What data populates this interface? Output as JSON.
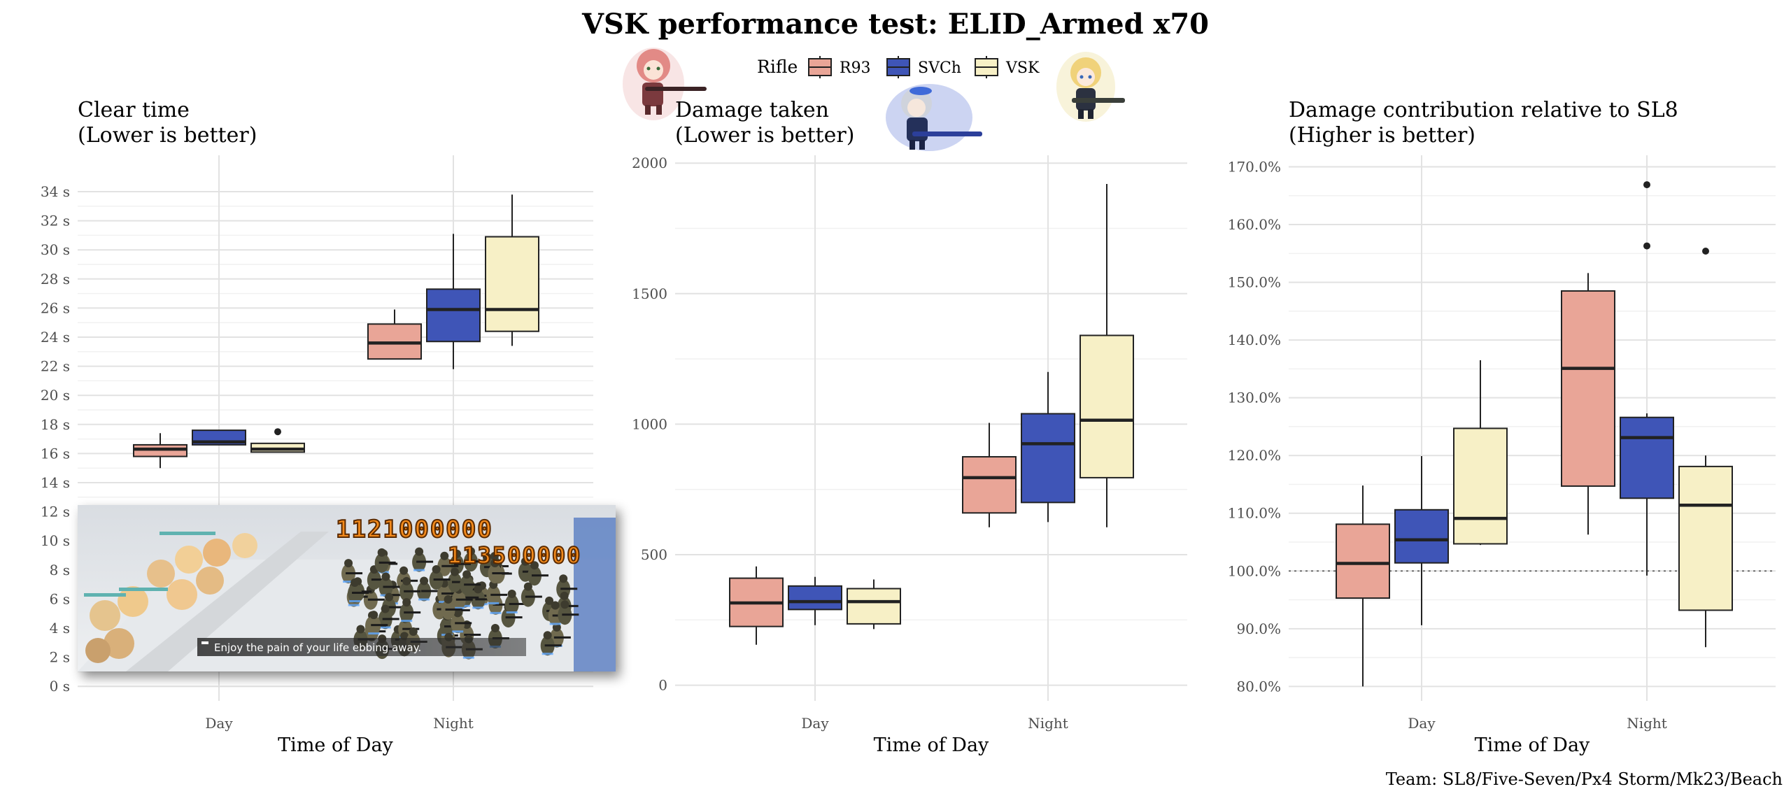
{
  "title": "VSK performance test: ELID_Armed x70",
  "caption": "Team: SL8/Five-Seven/Px4 Storm/Mk23/Beach",
  "legend": {
    "title": "Rifle",
    "entries": [
      {
        "name": "R93",
        "color": "#e9a597"
      },
      {
        "name": "SVCh",
        "color": "#3f55b7"
      },
      {
        "name": "VSK",
        "color": "#f7f0c6"
      }
    ]
  },
  "screenshot": {
    "subtitle": "Enjoy the pain of your life ebbing away.",
    "damage_text_1": "1121000000",
    "damage_text_2": "113500000"
  },
  "chart_data": [
    {
      "type": "box",
      "title_line1": "Clear time",
      "title_line2": "(Lower is better)",
      "xlabel": "Time of Day",
      "categories": [
        "Day",
        "Night"
      ],
      "ylim": [
        -1,
        36.5
      ],
      "yticks": [
        0,
        2,
        4,
        6,
        8,
        10,
        12,
        14,
        16,
        18,
        20,
        22,
        24,
        26,
        28,
        30,
        32,
        34
      ],
      "ytick_format": "s",
      "series": [
        {
          "name": "R93",
          "boxes": [
            {
              "min": 15.0,
              "q1": 15.8,
              "median": 16.3,
              "q3": 16.6,
              "max": 17.4,
              "outliers": []
            },
            {
              "min": 22.5,
              "q1": 22.5,
              "median": 23.6,
              "q3": 24.9,
              "max": 25.9,
              "outliers": []
            }
          ]
        },
        {
          "name": "SVCh",
          "boxes": [
            {
              "min": 16.6,
              "q1": 16.6,
              "median": 16.8,
              "q3": 17.6,
              "max": 17.6,
              "outliers": []
            },
            {
              "min": 21.8,
              "q1": 23.7,
              "median": 25.9,
              "q3": 27.3,
              "max": 31.1,
              "outliers": []
            }
          ]
        },
        {
          "name": "VSK",
          "boxes": [
            {
              "min": 16.1,
              "q1": 16.1,
              "median": 16.3,
              "q3": 16.7,
              "max": 16.7,
              "outliers": [
                17.5
              ]
            },
            {
              "min": 23.4,
              "q1": 24.4,
              "median": 25.9,
              "q3": 30.9,
              "max": 33.8,
              "outliers": []
            }
          ]
        }
      ]
    },
    {
      "type": "box",
      "title_line1": "Damage taken",
      "title_line2": "(Lower is better)",
      "xlabel": "Time of Day",
      "categories": [
        "Day",
        "Night"
      ],
      "ylim": [
        -60,
        2030
      ],
      "yticks": [
        0,
        500,
        1000,
        1500,
        2000
      ],
      "ytick_format": "plain",
      "series": [
        {
          "name": "R93",
          "boxes": [
            {
              "min": 155,
              "q1": 225,
              "median": 315,
              "q3": 410,
              "max": 455,
              "outliers": []
            },
            {
              "min": 605,
              "q1": 660,
              "median": 795,
              "q3": 875,
              "max": 1005,
              "outliers": []
            }
          ]
        },
        {
          "name": "SVCh",
          "boxes": [
            {
              "min": 230,
              "q1": 290,
              "median": 320,
              "q3": 380,
              "max": 415,
              "outliers": []
            },
            {
              "min": 625,
              "q1": 700,
              "median": 925,
              "q3": 1040,
              "max": 1200,
              "outliers": []
            }
          ]
        },
        {
          "name": "VSK",
          "boxes": [
            {
              "min": 215,
              "q1": 235,
              "median": 320,
              "q3": 370,
              "max": 405,
              "outliers": []
            },
            {
              "min": 605,
              "q1": 795,
              "median": 1015,
              "q3": 1340,
              "max": 1920,
              "outliers": []
            }
          ]
        }
      ]
    },
    {
      "type": "box",
      "title_line1": "Damage contribution relative to SL8",
      "title_line2": "(Higher is better)",
      "xlabel": "Time of Day",
      "categories": [
        "Day",
        "Night"
      ],
      "ylim": [
        77.5,
        172
      ],
      "yticks": [
        80,
        90,
        100,
        110,
        120,
        130,
        140,
        150,
        160,
        170
      ],
      "ytick_format": "pct",
      "reference_line": 100,
      "series": [
        {
          "name": "R93",
          "boxes": [
            {
              "min": 80.0,
              "q1": 95.3,
              "median": 101.3,
              "q3": 108.1,
              "max": 114.8,
              "outliers": []
            },
            {
              "min": 106.3,
              "q1": 114.7,
              "median": 135.1,
              "q3": 148.5,
              "max": 151.6,
              "outliers": []
            }
          ]
        },
        {
          "name": "SVCh",
          "boxes": [
            {
              "min": 90.6,
              "q1": 101.4,
              "median": 105.4,
              "q3": 110.6,
              "max": 119.9,
              "outliers": []
            },
            {
              "min": 99.2,
              "q1": 112.6,
              "median": 123.1,
              "q3": 126.6,
              "max": 127.3,
              "outliers": [
                156.3,
                166.9
              ]
            }
          ]
        },
        {
          "name": "VSK",
          "boxes": [
            {
              "min": 104.5,
              "q1": 104.7,
              "median": 109.1,
              "q3": 124.7,
              "max": 136.5,
              "outliers": []
            },
            {
              "min": 86.8,
              "q1": 93.2,
              "median": 111.4,
              "q3": 118.1,
              "max": 120.0,
              "outliers": [
                155.4
              ]
            }
          ]
        }
      ]
    }
  ]
}
